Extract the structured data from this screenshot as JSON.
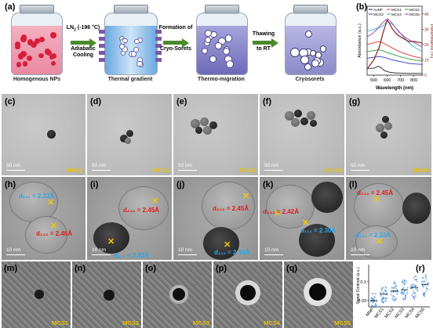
{
  "schematic": {
    "panel": "(a)",
    "steps": [
      {
        "caption": "Homogenous NPs"
      },
      {
        "caption": "Thermal gradient"
      },
      {
        "caption": "Thermo-migration"
      },
      {
        "caption": "Cryosorets"
      }
    ],
    "arrows": [
      {
        "line1": "LN",
        "sub": "2",
        "line1b": " (-196 °C)",
        "line2": "Adiabatic",
        "line3": "Cooling"
      },
      {
        "line1": "Formation of",
        "line2": "Cryo-Sorets"
      },
      {
        "line1": "Thawing",
        "line2": "to RT"
      }
    ]
  },
  "spectra": {
    "panel": "(b)",
    "chart_data": {
      "type": "line",
      "xlabel": "Wavelength (nm)",
      "ylabel": "Absorbance (a.u.)",
      "y2label": "Transmittance (%)",
      "xlim": [
        450,
        860
      ],
      "xticks": [
        500,
        600,
        700,
        800
      ],
      "y2ticks": [
        0,
        10,
        20,
        30,
        40
      ],
      "legend": [
        "AuNP",
        "MCS1",
        "MCS2",
        "MCS3",
        "MCS4",
        "MCS5"
      ],
      "series": [
        {
          "name": "AuNP",
          "color": "#222222",
          "x": [
            450,
            480,
            510,
            530,
            550,
            580,
            620,
            660,
            700,
            760,
            820,
            860
          ],
          "y": [
            0.12,
            0.12,
            0.13,
            0.16,
            0.14,
            0.08,
            0.05,
            0.04,
            0.035,
            0.03,
            0.03,
            0.03
          ]
        },
        {
          "name": "MCS1",
          "color": "#e23030",
          "x": [
            450,
            480,
            510,
            540,
            570,
            600,
            640,
            680,
            720,
            760,
            800,
            860
          ],
          "y": [
            0.55,
            0.56,
            0.58,
            0.6,
            0.57,
            0.53,
            0.48,
            0.43,
            0.39,
            0.36,
            0.33,
            0.3
          ]
        },
        {
          "name": "MCS2",
          "color": "#2f9e3a",
          "x": [
            450,
            480,
            510,
            540,
            570,
            600,
            640,
            680,
            720,
            760,
            800,
            860
          ],
          "y": [
            0.42,
            0.43,
            0.44,
            0.45,
            0.43,
            0.4,
            0.37,
            0.34,
            0.31,
            0.29,
            0.27,
            0.25
          ]
        },
        {
          "name": "MCS3",
          "color": "#2a3fb8",
          "x": [
            450,
            480,
            510,
            540,
            570,
            600,
            640,
            680,
            720,
            760,
            800,
            860
          ],
          "y": [
            0.3,
            0.31,
            0.32,
            0.33,
            0.32,
            0.3,
            0.27,
            0.25,
            0.23,
            0.21,
            0.2,
            0.19
          ]
        },
        {
          "name": "MCS4",
          "color": "#2bb8c8",
          "x": [
            450,
            480,
            510,
            540,
            570,
            600,
            640,
            680,
            720,
            760,
            800,
            860
          ],
          "y": [
            0.78,
            0.8,
            0.82,
            0.84,
            0.88,
            0.96,
            0.9,
            0.8,
            0.68,
            0.58,
            0.5,
            0.42
          ]
        },
        {
          "name": "MCS5",
          "color": "#9b2fb8",
          "x": [
            450,
            480,
            510,
            540,
            570,
            600,
            620,
            650,
            690,
            740,
            800,
            860
          ],
          "y": [
            0.68,
            0.72,
            0.78,
            0.86,
            0.94,
            1.0,
            0.97,
            0.88,
            0.76,
            0.66,
            0.58,
            0.5
          ]
        },
        {
          "name": "Transmittance",
          "color": "#8b1a1a",
          "x": [
            450,
            500,
            540,
            570,
            600,
            615,
            640,
            680,
            720,
            760,
            800,
            860
          ],
          "y": [
            4,
            10,
            18,
            28,
            36,
            34,
            30,
            26,
            24,
            22,
            22,
            21
          ],
          "axis": "y2"
        }
      ]
    }
  },
  "tem_low": [
    {
      "panel": "(c)",
      "sample": "MCS1",
      "scale": "50 nm"
    },
    {
      "panel": "(d)",
      "sample": "MCS2",
      "scale": "50 nm"
    },
    {
      "panel": "(e)",
      "sample": "MCS3",
      "scale": "50 nm"
    },
    {
      "panel": "(f)",
      "sample": "MCS4",
      "scale": "50 nm"
    },
    {
      "panel": "(g)",
      "sample": "MCS5",
      "scale": "50 nm"
    }
  ],
  "tem_hr": [
    {
      "panel": "(h)",
      "scale": "10 nm",
      "labels": [
        {
          "text": "d₁₁₁ = 2.33Å",
          "color": "blue"
        },
        {
          "text": "d₂₂₂ = 2.46Å",
          "color": "red"
        }
      ]
    },
    {
      "panel": "(i)",
      "scale": "10 nm",
      "labels": [
        {
          "text": "d₂₂₂ = 2.45Å",
          "color": "red"
        },
        {
          "text": "d₁₁₁ = 2.33Å",
          "color": "blue"
        }
      ]
    },
    {
      "panel": "(j)",
      "scale": "10 nm",
      "labels": [
        {
          "text": "d₂₂₂ = 2.45Å",
          "color": "red"
        },
        {
          "text": "d₁₁₁ = 2.34Å",
          "color": "blue"
        }
      ]
    },
    {
      "panel": "(k)",
      "scale": "10 nm",
      "labels": [
        {
          "text": "d₂₂₂ = 2.42Å",
          "color": "red"
        },
        {
          "text": "d₁₁₁ = 2.30Å",
          "color": "blue"
        }
      ]
    },
    {
      "panel": "(l)",
      "scale": "10 nm",
      "labels": [
        {
          "text": "d₂₂₂ = 2.45Å",
          "color": "red"
        },
        {
          "text": "d₁₁₁ = 2.33Å",
          "color": "blue"
        }
      ]
    }
  ],
  "ec_maps": [
    {
      "panel": "(m)",
      "sample": "MCS1"
    },
    {
      "panel": "(n)",
      "sample": "MCS2"
    },
    {
      "panel": "(o)",
      "sample": "MCS3"
    },
    {
      "panel": "(p)",
      "sample": "MCS4"
    },
    {
      "panel": "(q)",
      "sample": "MCS5"
    }
  ],
  "contrast": {
    "panel": "(r)",
    "chart_data": {
      "type": "scatter",
      "ylabel": "Signal Contrast (a.u.)",
      "scale": "log",
      "yticks": [
        {
          "label": "0.1",
          "value": 0.1
        },
        {
          "label": "0.03",
          "value": 0.03
        }
      ],
      "categories": [
        "MNP",
        "MCS1",
        "MCS2",
        "MCS3",
        "MCS4",
        "MCS5"
      ],
      "medians": [
        0.03,
        0.045,
        0.055,
        0.06,
        0.07,
        0.085
      ],
      "spreads": [
        0.35,
        0.4,
        0.45,
        0.5,
        0.55,
        0.55
      ]
    }
  }
}
